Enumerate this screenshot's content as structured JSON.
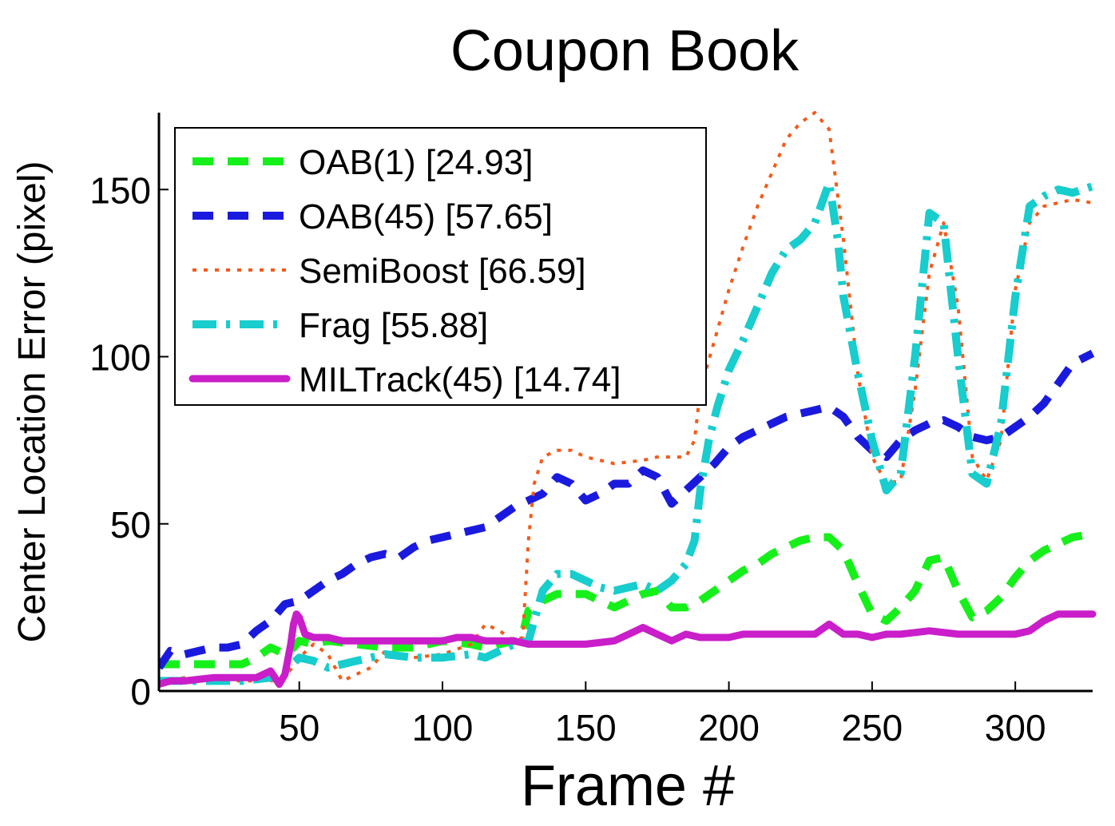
{
  "chart_data": {
    "type": "line",
    "title": "Coupon Book",
    "xlabel": "Frame #",
    "ylabel": "Center Location Error (pixel)",
    "xlim": [
      1,
      327
    ],
    "ylim": [
      0,
      173
    ],
    "xticks": [
      50,
      100,
      150,
      200,
      250,
      300
    ],
    "yticks": [
      0,
      50,
      100,
      150
    ],
    "grid": false,
    "legend_position": "top-left",
    "series": [
      {
        "name": "OAB(1) [24.93]",
        "color": "#16f01a",
        "style": "dashed",
        "x": [
          1,
          5,
          10,
          20,
          30,
          35,
          40,
          45,
          48,
          50,
          55,
          60,
          70,
          80,
          90,
          100,
          110,
          115,
          120,
          125,
          128,
          130,
          135,
          140,
          150,
          160,
          170,
          175,
          180,
          185,
          190,
          195,
          200,
          205,
          210,
          215,
          220,
          225,
          230,
          235,
          240,
          245,
          250,
          255,
          260,
          265,
          270,
          275,
          280,
          285,
          290,
          295,
          300,
          305,
          310,
          315,
          320,
          327
        ],
        "y": [
          8,
          8,
          8,
          8,
          8,
          10,
          13,
          11,
          13,
          15,
          14,
          15,
          14,
          13,
          13,
          15,
          14,
          13,
          14,
          15,
          17,
          24,
          27,
          29,
          29,
          25,
          29,
          30,
          25,
          25,
          27,
          30,
          33,
          36,
          38,
          41,
          43,
          45,
          46,
          46,
          42,
          32,
          23,
          21,
          25,
          30,
          39,
          40,
          30,
          22,
          24,
          28,
          34,
          39,
          42,
          44,
          46,
          47
        ]
      },
      {
        "name": "OAB(45) [57.65]",
        "color": "#1a1adf",
        "style": "dashed",
        "x": [
          1,
          5,
          10,
          15,
          20,
          25,
          30,
          35,
          40,
          45,
          50,
          55,
          60,
          65,
          70,
          75,
          80,
          85,
          90,
          95,
          100,
          105,
          110,
          115,
          120,
          125,
          130,
          135,
          140,
          145,
          150,
          155,
          160,
          165,
          170,
          175,
          180,
          185,
          190,
          195,
          200,
          205,
          210,
          215,
          220,
          225,
          230,
          235,
          240,
          245,
          250,
          255,
          260,
          265,
          270,
          275,
          280,
          285,
          290,
          295,
          300,
          305,
          310,
          315,
          320,
          327
        ],
        "y": [
          7,
          12,
          11,
          12,
          13,
          13,
          14,
          18,
          21,
          26,
          27,
          30,
          33,
          35,
          38,
          40,
          41,
          40,
          43,
          45,
          46,
          47,
          48,
          49,
          52,
          55,
          57,
          59,
          64,
          62,
          57,
          59,
          62,
          62,
          66,
          64,
          56,
          60,
          64,
          68,
          73,
          76,
          78,
          80,
          82,
          83,
          84,
          85,
          82,
          76,
          72,
          70,
          75,
          78,
          80,
          81,
          79,
          76,
          75,
          76,
          79,
          82,
          86,
          92,
          98,
          101
        ]
      },
      {
        "name": "SemiBoost [66.59]",
        "color": "#f35a1a",
        "style": "dotted",
        "x": [
          1,
          10,
          20,
          30,
          40,
          45,
          50,
          55,
          60,
          65,
          70,
          75,
          80,
          90,
          100,
          110,
          115,
          120,
          125,
          128,
          130,
          132,
          135,
          140,
          145,
          150,
          155,
          160,
          170,
          175,
          180,
          185,
          188,
          190,
          195,
          200,
          205,
          210,
          215,
          220,
          225,
          230,
          235,
          240,
          245,
          250,
          255,
          260,
          265,
          270,
          275,
          280,
          285,
          290,
          295,
          300,
          305,
          310,
          315,
          320,
          327
        ],
        "y": [
          3,
          4,
          3,
          3,
          3,
          4,
          10,
          14,
          11,
          3,
          5,
          7,
          12,
          10,
          11,
          14,
          20,
          18,
          15,
          16,
          45,
          62,
          70,
          72,
          72,
          70,
          69,
          68,
          69,
          70,
          70,
          70,
          75,
          90,
          105,
          120,
          133,
          145,
          155,
          165,
          170,
          173,
          168,
          135,
          95,
          70,
          62,
          63,
          90,
          125,
          140,
          115,
          70,
          63,
          75,
          120,
          140,
          145,
          146,
          147,
          146
        ]
      },
      {
        "name": "Frag [55.88]",
        "color": "#17cdcd",
        "style": "dashdot",
        "x": [
          1,
          10,
          20,
          30,
          40,
          45,
          50,
          55,
          60,
          65,
          70,
          75,
          80,
          90,
          100,
          110,
          115,
          120,
          125,
          130,
          135,
          140,
          145,
          150,
          155,
          160,
          165,
          170,
          175,
          180,
          185,
          188,
          190,
          193,
          196,
          200,
          205,
          210,
          215,
          220,
          225,
          230,
          235,
          238,
          240,
          245,
          250,
          255,
          260,
          265,
          270,
          275,
          280,
          285,
          290,
          295,
          300,
          305,
          310,
          315,
          320,
          327
        ],
        "y": [
          3,
          3,
          3,
          3,
          4,
          6,
          10,
          9,
          7,
          8,
          9,
          10,
          11,
          10,
          10,
          11,
          10,
          12,
          14,
          15,
          30,
          35,
          35,
          33,
          31,
          30,
          31,
          32,
          30,
          33,
          38,
          45,
          60,
          75,
          85,
          96,
          105,
          115,
          125,
          132,
          135,
          140,
          152,
          135,
          118,
          95,
          75,
          60,
          65,
          100,
          143,
          140,
          100,
          65,
          62,
          80,
          118,
          145,
          148,
          150,
          149,
          151
        ]
      },
      {
        "name": "MILTrack(45) [14.74]",
        "color": "#c91ec9",
        "style": "solid",
        "x": [
          1,
          5,
          10,
          20,
          30,
          35,
          40,
          43,
          45,
          47,
          48,
          49,
          50,
          52,
          55,
          60,
          65,
          70,
          80,
          90,
          100,
          105,
          110,
          115,
          120,
          125,
          130,
          135,
          140,
          150,
          160,
          165,
          170,
          175,
          180,
          185,
          190,
          195,
          200,
          205,
          210,
          220,
          230,
          235,
          240,
          245,
          250,
          255,
          260,
          270,
          280,
          290,
          300,
          305,
          310,
          315,
          320,
          327
        ],
        "y": [
          2,
          3,
          3,
          4,
          4,
          4,
          6,
          2,
          5,
          14,
          20,
          23,
          22,
          17,
          16,
          16,
          15,
          15,
          15,
          15,
          15,
          16,
          16,
          15,
          15,
          15,
          14,
          14,
          14,
          14,
          15,
          17,
          19,
          17,
          15,
          17,
          16,
          16,
          16,
          17,
          17,
          17,
          17,
          20,
          17,
          17,
          16,
          17,
          17,
          18,
          17,
          17,
          17,
          18,
          21,
          23,
          23,
          23
        ]
      }
    ]
  }
}
